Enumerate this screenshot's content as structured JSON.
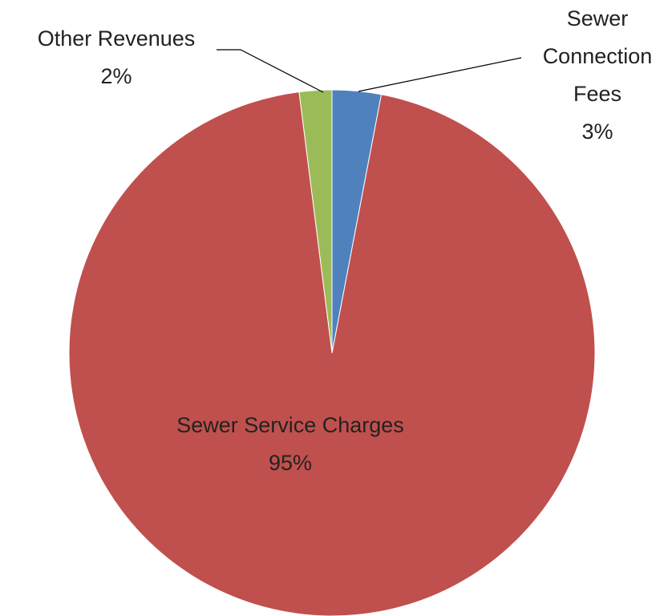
{
  "chart_data": {
    "type": "pie",
    "categories": [
      "Sewer Connection Fees",
      "Sewer Service Charges",
      "Other Revenues"
    ],
    "values": [
      3,
      95,
      2
    ],
    "value_labels": [
      "3%",
      "95%",
      "2%"
    ],
    "colors": [
      "#4f81bd",
      "#c0504d",
      "#9bbb59"
    ]
  }
}
